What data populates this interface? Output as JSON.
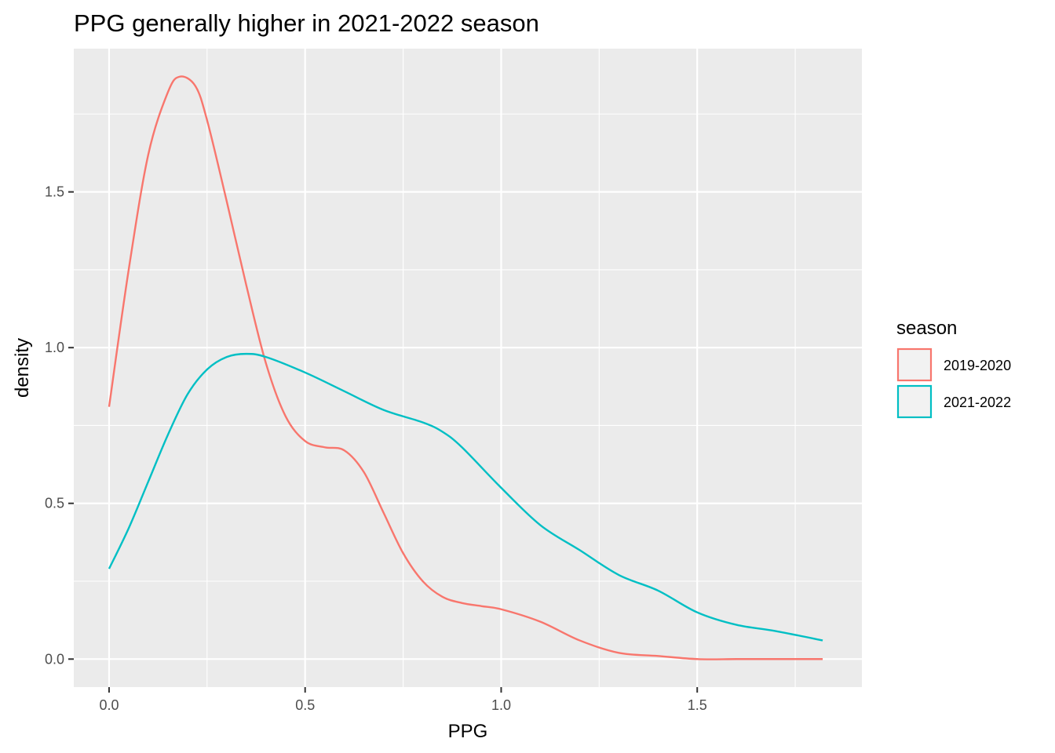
{
  "chart_data": {
    "type": "line",
    "title": "PPG generally higher in 2021-2022 season",
    "xlabel": "PPG",
    "ylabel": "density",
    "xlim": [
      -0.09,
      1.92
    ],
    "ylim": [
      -0.09,
      1.96
    ],
    "x_ticks": [
      0.0,
      0.5,
      1.0,
      1.5
    ],
    "x_tick_labels": [
      "0.0",
      "0.5",
      "1.0",
      "1.5"
    ],
    "y_ticks": [
      0.0,
      0.5,
      1.0,
      1.5
    ],
    "y_tick_labels": [
      "0.0",
      "0.5",
      "1.0",
      "1.5"
    ],
    "grid": true,
    "legend": {
      "title": "season",
      "position": "right"
    },
    "series": [
      {
        "name": "2019-2020",
        "color": "#F8766D",
        "x": [
          0.0,
          0.05,
          0.1,
          0.15,
          0.18,
          0.22,
          0.25,
          0.3,
          0.35,
          0.4,
          0.45,
          0.5,
          0.55,
          0.6,
          0.65,
          0.7,
          0.75,
          0.8,
          0.85,
          0.9,
          0.95,
          1.0,
          1.1,
          1.2,
          1.3,
          1.4,
          1.5,
          1.6,
          1.7,
          1.82
        ],
        "y": [
          0.81,
          1.25,
          1.62,
          1.82,
          1.87,
          1.84,
          1.73,
          1.47,
          1.2,
          0.95,
          0.78,
          0.7,
          0.68,
          0.67,
          0.6,
          0.47,
          0.34,
          0.25,
          0.2,
          0.18,
          0.17,
          0.16,
          0.12,
          0.06,
          0.02,
          0.01,
          0.0,
          0.0,
          0.0,
          0.0
        ]
      },
      {
        "name": "2021-2022",
        "color": "#00BFC4",
        "x": [
          0.0,
          0.05,
          0.1,
          0.15,
          0.2,
          0.25,
          0.3,
          0.35,
          0.4,
          0.5,
          0.6,
          0.7,
          0.8,
          0.85,
          0.9,
          1.0,
          1.1,
          1.2,
          1.3,
          1.4,
          1.5,
          1.6,
          1.7,
          1.82
        ],
        "y": [
          0.29,
          0.42,
          0.57,
          0.72,
          0.85,
          0.93,
          0.97,
          0.98,
          0.97,
          0.92,
          0.86,
          0.8,
          0.76,
          0.73,
          0.68,
          0.55,
          0.43,
          0.35,
          0.27,
          0.22,
          0.15,
          0.11,
          0.09,
          0.06
        ]
      }
    ]
  }
}
